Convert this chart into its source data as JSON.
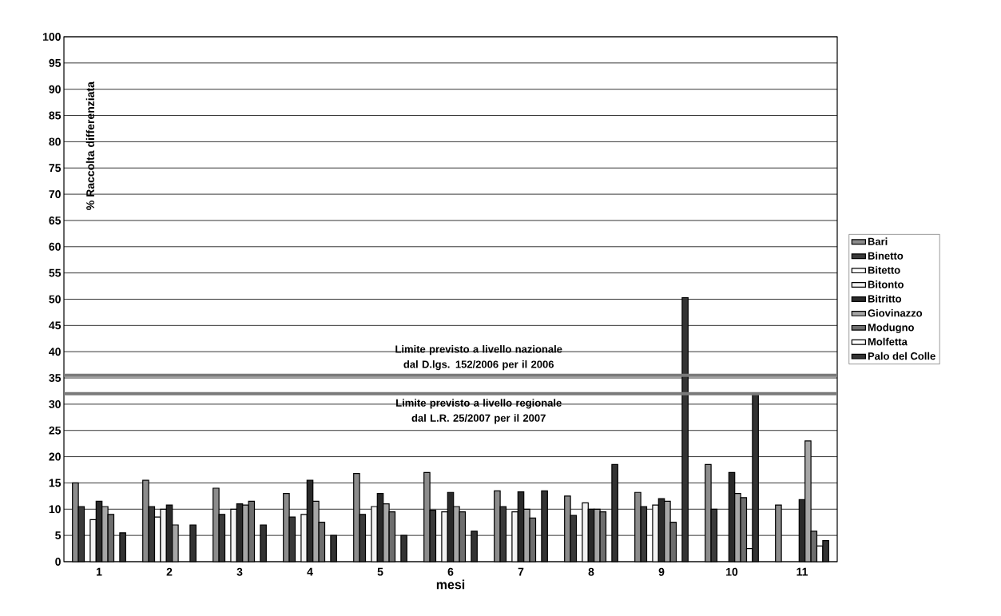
{
  "chart_data": {
    "type": "bar",
    "xlabel": "mesi",
    "ylabel": "% Raccolta differenziata",
    "categories": [
      "1",
      "2",
      "3",
      "4",
      "5",
      "6",
      "7",
      "8",
      "9",
      "10",
      "11"
    ],
    "series": [
      {
        "name": "Bari",
        "color": "#8c8c8c",
        "values": [
          15,
          15.5,
          14,
          13,
          16.8,
          17,
          13.5,
          12.5,
          13.2,
          18.5,
          10.8
        ]
      },
      {
        "name": "Binetto",
        "color": "#3a3a3a",
        "values": [
          10.5,
          10.5,
          9,
          8.5,
          9,
          9.8,
          10.5,
          8.8,
          10.5,
          10,
          null
        ]
      },
      {
        "name": "Bitetto",
        "color": "#ffffff",
        "values": [
          null,
          8.5,
          null,
          null,
          null,
          null,
          null,
          null,
          null,
          null,
          null
        ]
      },
      {
        "name": "Bitonto",
        "color": "#f2f2f2",
        "values": [
          8,
          10,
          10,
          9,
          10.5,
          9.5,
          9.5,
          11.2,
          10.8,
          null,
          null
        ]
      },
      {
        "name": "Bitritto",
        "color": "#2a2a2a",
        "values": [
          11.5,
          10.8,
          11,
          15.5,
          13,
          13.2,
          13.3,
          10,
          12,
          17,
          11.8
        ]
      },
      {
        "name": "Giovinazzo",
        "color": "#a6a6a6",
        "values": [
          10.5,
          7,
          10.8,
          11.5,
          11,
          10.5,
          10,
          10,
          11.5,
          13,
          23
        ]
      },
      {
        "name": "Modugno",
        "color": "#6e6e6e",
        "values": [
          9,
          null,
          11.5,
          7.5,
          9.5,
          9.5,
          8.3,
          9.5,
          7.5,
          12.2,
          5.8
        ]
      },
      {
        "name": "Molfetta",
        "color": "#ffffff",
        "values": [
          null,
          null,
          null,
          null,
          null,
          null,
          null,
          null,
          null,
          2.5,
          3
        ]
      },
      {
        "name": "Palo del Colle",
        "color": "#333333",
        "values": [
          5.5,
          7,
          7,
          5,
          5,
          5.8,
          13.5,
          18.5,
          50.3,
          32,
          4
        ]
      }
    ],
    "ylim": [
      0,
      100
    ],
    "yticks": [
      0,
      5,
      10,
      15,
      20,
      25,
      30,
      35,
      40,
      45,
      50,
      55,
      60,
      65,
      70,
      75,
      80,
      85,
      90,
      95,
      100
    ],
    "grid": "y",
    "legend": "right",
    "ref_lines": [
      {
        "axis": "y",
        "value": 35.5,
        "label": "Limite previsto a livello nazionale dal D.lgs. 152/2006 per il 2006",
        "color": "#7a7a7a"
      },
      {
        "axis": "y",
        "value": 32,
        "label": "Limite previsto a livello regionale dal L.R. 25/2007 per il 2007",
        "color": "#7a7a7a"
      }
    ]
  }
}
